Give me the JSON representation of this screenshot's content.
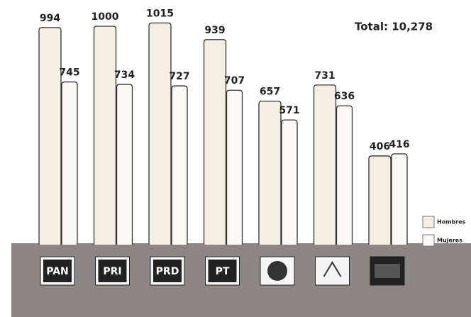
{
  "chart_data": {
    "type": "bar",
    "annotation": "Total: 10,278",
    "categories": [
      "PAN",
      "PRI",
      "PRD",
      "PT",
      null,
      null,
      null
    ],
    "series": [
      {
        "name": "Hombres",
        "color": "#f3efe2",
        "values": [
          994,
          1000,
          1015,
          939,
          657,
          731,
          406
        ]
      },
      {
        "name": "Mujeres",
        "color": "#fbfaf4",
        "values": [
          745,
          734,
          727,
          707,
          571,
          636,
          416
        ]
      }
    ]
  }
}
